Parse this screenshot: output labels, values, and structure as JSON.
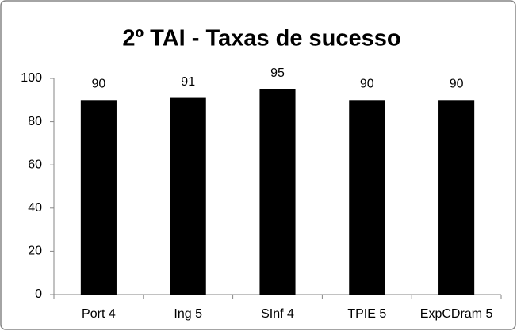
{
  "chart_data": {
    "type": "bar",
    "title": "2º TAI - Taxas de sucesso",
    "categories": [
      "Port 4",
      "Ing 5",
      "SInf 4",
      "TPIE 5",
      "ExpCDram 5"
    ],
    "values": [
      90,
      91,
      95,
      90,
      90
    ],
    "color": "#000000",
    "ylim": [
      0,
      100
    ],
    "yticks": [
      0,
      20,
      40,
      60,
      80,
      100
    ],
    "grid": false
  }
}
